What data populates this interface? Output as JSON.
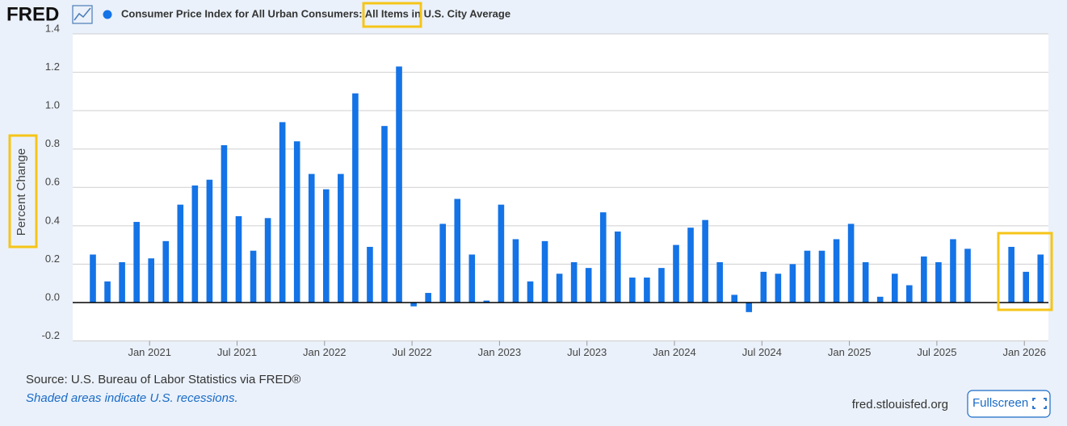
{
  "logo": "FRED",
  "chart_data": {
    "type": "bar",
    "y_label": "Percent Change",
    "series": [
      {
        "name": "Consumer Price Index for All Urban Consumers: All Items in U.S. City Average",
        "color": "#1473e6",
        "values": [
          0.25,
          0.11,
          0.21,
          0.42,
          0.23,
          0.32,
          0.51,
          0.61,
          0.64,
          0.82,
          0.45,
          0.27,
          0.44,
          0.94,
          0.84,
          0.67,
          0.59,
          0.67,
          1.09,
          0.29,
          0.92,
          1.23,
          -0.02,
          0.05,
          0.41,
          0.54,
          0.25,
          0.01,
          0.51,
          0.33,
          0.11,
          0.32,
          0.15,
          0.21,
          0.18,
          0.47,
          0.37,
          0.13,
          0.13,
          0.18,
          0.3,
          0.39,
          0.43,
          0.21,
          0.04,
          -0.05,
          0.16,
          0.15,
          0.2,
          0.27,
          0.27,
          0.33,
          0.41,
          0.21,
          0.03,
          0.15,
          0.09,
          0.24,
          0.21,
          0.33,
          0.28,
          null,
          null,
          0.29,
          0.16,
          0.25
        ]
      }
    ],
    "x": [
      "2020-09",
      "2020-10",
      "2020-11",
      "2020-12",
      "2021-01",
      "2021-02",
      "2021-03",
      "2021-04",
      "2021-05",
      "2021-06",
      "2021-07",
      "2021-08",
      "2021-09",
      "2021-10",
      "2021-11",
      "2021-12",
      "2022-01",
      "2022-02",
      "2022-03",
      "2022-04",
      "2022-05",
      "2022-06",
      "2022-07",
      "2022-08",
      "2022-09",
      "2022-10",
      "2022-11",
      "2022-12",
      "2023-01",
      "2023-02",
      "2023-03",
      "2023-04",
      "2023-05",
      "2023-06",
      "2023-07",
      "2023-08",
      "2023-09",
      "2023-10",
      "2023-11",
      "2023-12",
      "2024-01",
      "2024-02",
      "2024-03",
      "2024-04",
      "2024-05",
      "2024-06",
      "2024-07",
      "2024-08",
      "2024-09",
      "2024-10",
      "2024-11",
      "2024-12",
      "2025-01",
      "2025-02",
      "2025-03",
      "2025-04",
      "2025-05",
      "2025-06",
      "2025-07",
      "2025-08",
      "2025-09",
      "2025-10",
      "2025-11",
      "2025-12",
      "2026-01",
      "2026-02"
    ],
    "xticks": [
      {
        "value": "2021-01",
        "label": "Jan 2021"
      },
      {
        "value": "2021-07",
        "label": "Jul 2021"
      },
      {
        "value": "2022-01",
        "label": "Jan 2022"
      },
      {
        "value": "2022-07",
        "label": "Jul 2022"
      },
      {
        "value": "2023-01",
        "label": "Jan 2023"
      },
      {
        "value": "2023-07",
        "label": "Jul 2023"
      },
      {
        "value": "2024-01",
        "label": "Jan 2024"
      },
      {
        "value": "2024-07",
        "label": "Jul 2024"
      },
      {
        "value": "2025-01",
        "label": "Jan 2025"
      },
      {
        "value": "2025-07",
        "label": "Jul 2025"
      },
      {
        "value": "2026-01",
        "label": "Jan 2026"
      }
    ],
    "ylim": [
      -0.2,
      1.4
    ],
    "yticks": [
      -0.2,
      {
        "value": 0,
        "label": "0.0"
      },
      0.2,
      0.4,
      0.6,
      0.8,
      {
        "value": 1,
        "label": "1.0"
      },
      1.2,
      1.4
    ],
    "grid": true
  },
  "source": "Source: U.S. Bureau of Labor Statistics via FRED®",
  "note": "Shaded areas indicate U.S. recessions.",
  "site": "fred.stlouisfed.org",
  "button": "Fullscreen"
}
